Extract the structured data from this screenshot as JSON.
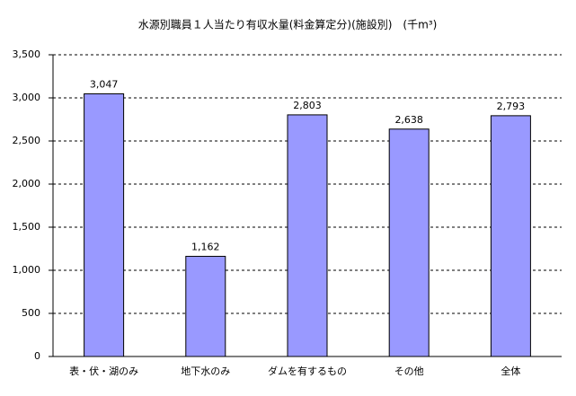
{
  "chart_data": {
    "type": "bar",
    "title": "水源別職員１人当たり有収水量(料金算定分)(施設別)　(千m³)",
    "categories": [
      "表・伏・湖のみ",
      "地下水のみ",
      "ダムを有するもの",
      "その他",
      "全体"
    ],
    "values": [
      3047,
      1162,
      2803,
      2638,
      2793
    ],
    "value_labels": [
      "3,047",
      "1,162",
      "2,803",
      "2,638",
      "2,793"
    ],
    "color": "#9999ff",
    "ylim": [
      0,
      3500
    ],
    "yticks": [
      0,
      500,
      {
        "value": 1000,
        "label": "1,000"
      },
      {
        "value": 1500,
        "label": "1,500"
      },
      {
        "value": 2000,
        "label": "2,000"
      },
      {
        "value": 2500,
        "label": "2,500"
      },
      {
        "value": 3000,
        "label": "3,000"
      },
      {
        "value": 3500,
        "label": "3,500"
      }
    ],
    "grid": true
  }
}
